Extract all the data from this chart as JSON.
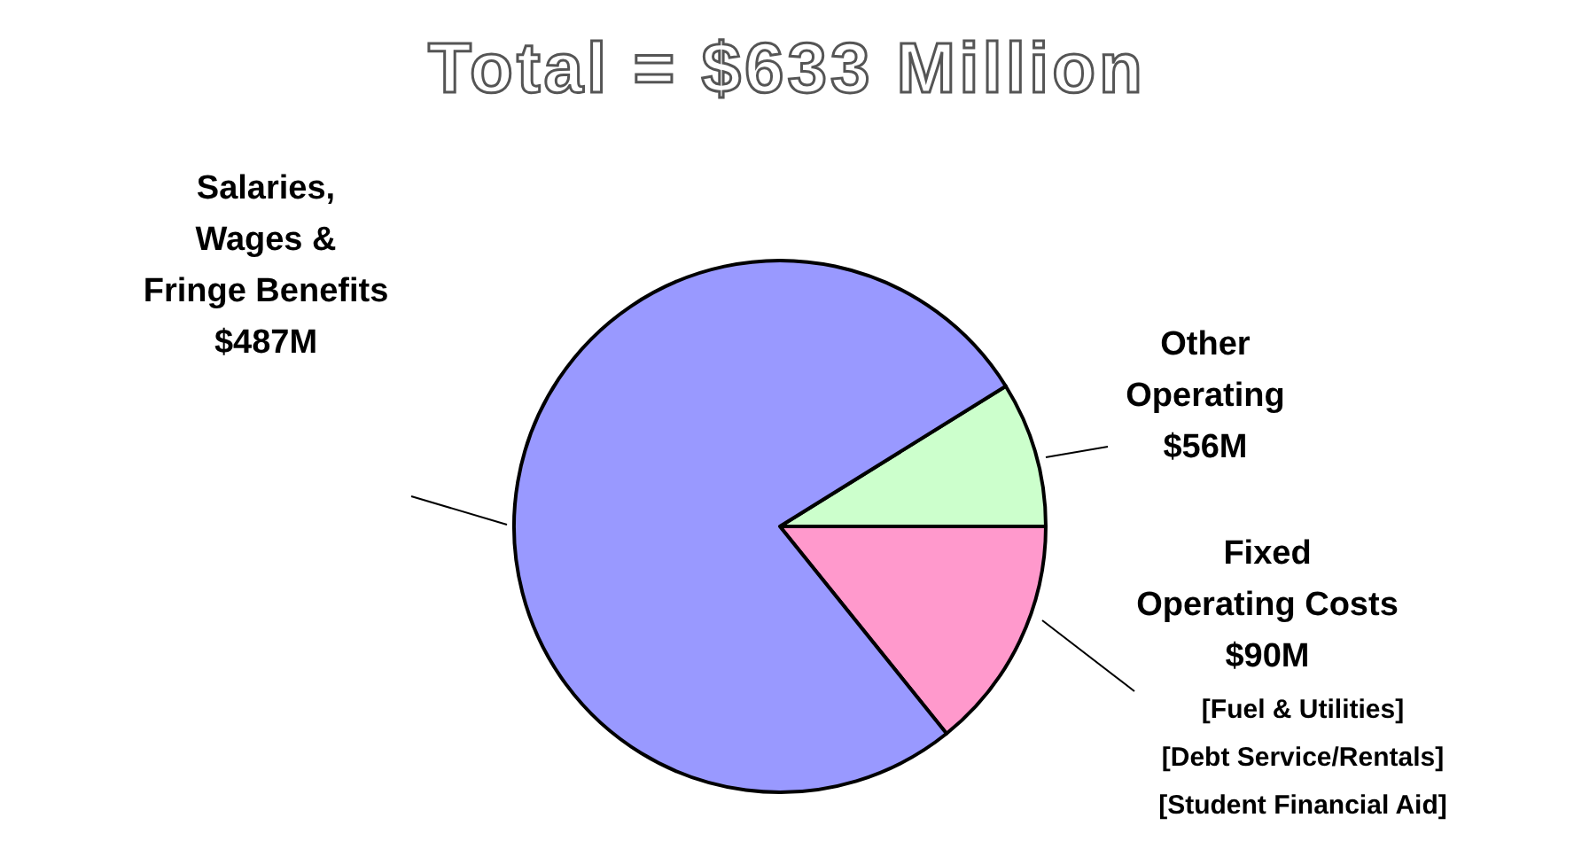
{
  "chart_data": {
    "type": "pie",
    "title": "Total = $633 Million",
    "categories": [
      "Other\nOperating",
      "Fixed\nOperating Costs",
      "Salaries,\nWages &\nFringe Benefits"
    ],
    "values": [
      56,
      90,
      487
    ],
    "colors": [
      "#ccffcc",
      "#ff99cc",
      "#9999ff"
    ],
    "value_labels": [
      "$56M",
      "$90M",
      "$487M"
    ],
    "annotations": [
      "[Fuel & Utilities]",
      "[Debt Service/Rentals]",
      "[Student Financial Aid]"
    ]
  }
}
